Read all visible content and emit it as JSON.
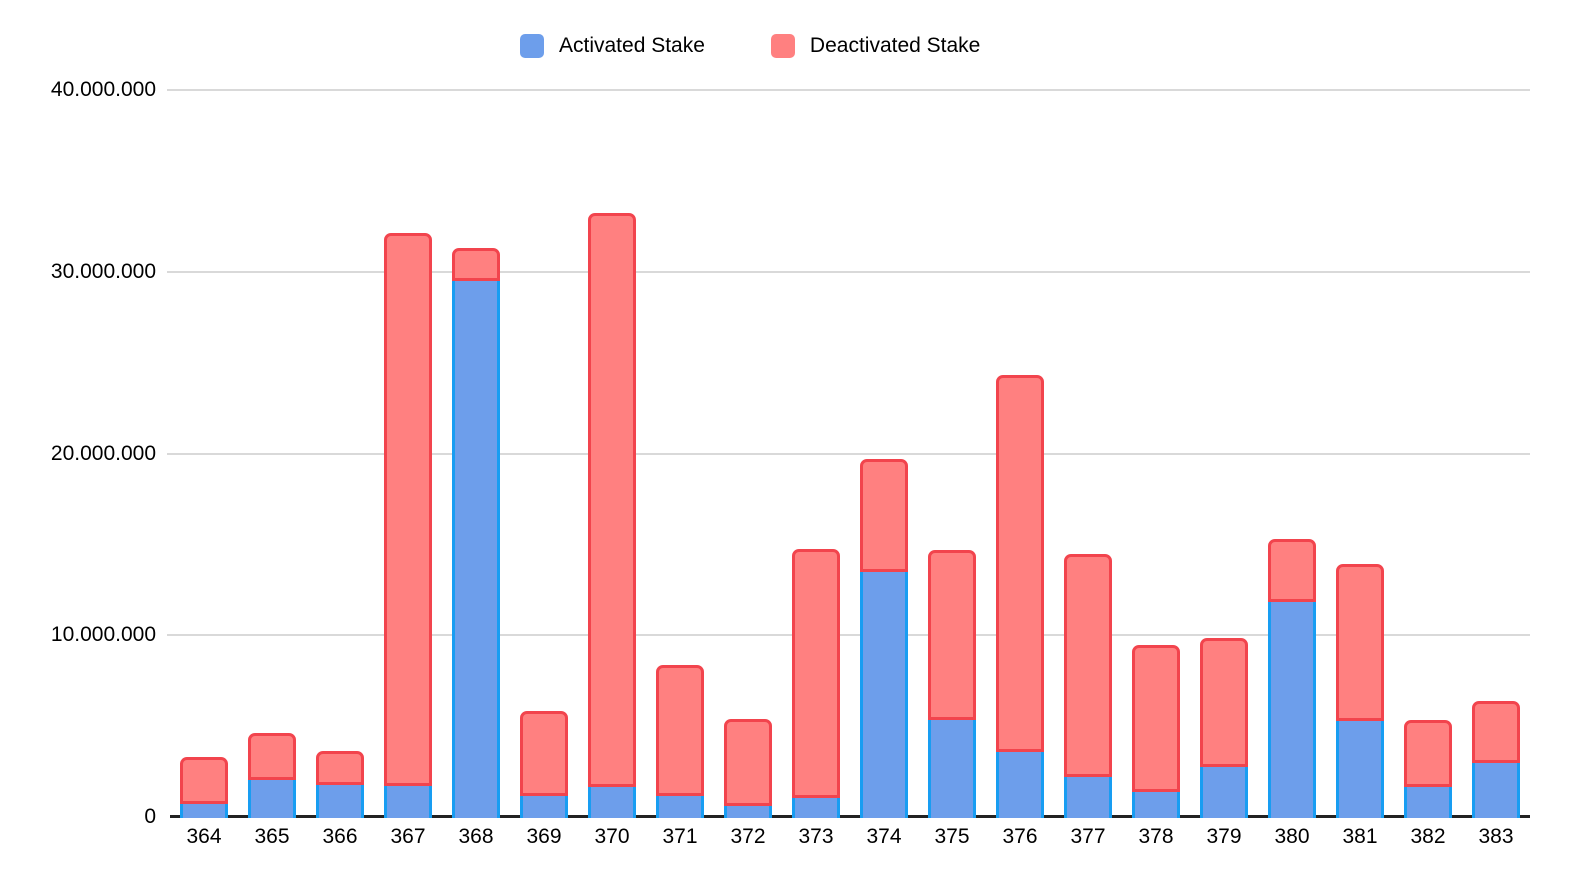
{
  "chart_data": {
    "type": "bar",
    "stacked": true,
    "title": "",
    "categories": [
      "364",
      "365",
      "366",
      "367",
      "368",
      "369",
      "370",
      "371",
      "372",
      "373",
      "374",
      "375",
      "376",
      "377",
      "378",
      "379",
      "380",
      "381",
      "382",
      "383"
    ],
    "series": [
      {
        "name": "Activated Stake",
        "fill_color": "#6d9eeb",
        "border_color": "#189df2",
        "values": [
          950000,
          2250000,
          2000000,
          1900000,
          29700000,
          1400000,
          1850000,
          1350000,
          850000,
          1250000,
          13700000,
          5550000,
          3800000,
          2400000,
          1600000,
          2950000,
          12050000,
          5500000,
          1850000,
          3200000
        ]
      },
      {
        "name": "Deactivated Stake",
        "fill_color": "#ff8080",
        "border_color": "#f2444d",
        "values": [
          2400000,
          2450000,
          1700000,
          30300000,
          1650000,
          4500000,
          31450000,
          7050000,
          4600000,
          13550000,
          6050000,
          9200000,
          20600000,
          12150000,
          7900000,
          6950000,
          3300000,
          8500000,
          3550000,
          3250000
        ]
      }
    ],
    "y_axis": {
      "min": 0,
      "max": 40000000,
      "tick_interval": 10000000,
      "tick_labels": [
        "0",
        "10.000.000",
        "20.000.000",
        "30.000.000",
        "40.000.000"
      ]
    },
    "x_axis": {
      "label": ""
    },
    "grid": true,
    "legend_position": "top",
    "colors": {
      "background": "#ffffff",
      "gridline": "#d9d9d9",
      "axis_line": "#222222",
      "text": "#000000"
    }
  }
}
